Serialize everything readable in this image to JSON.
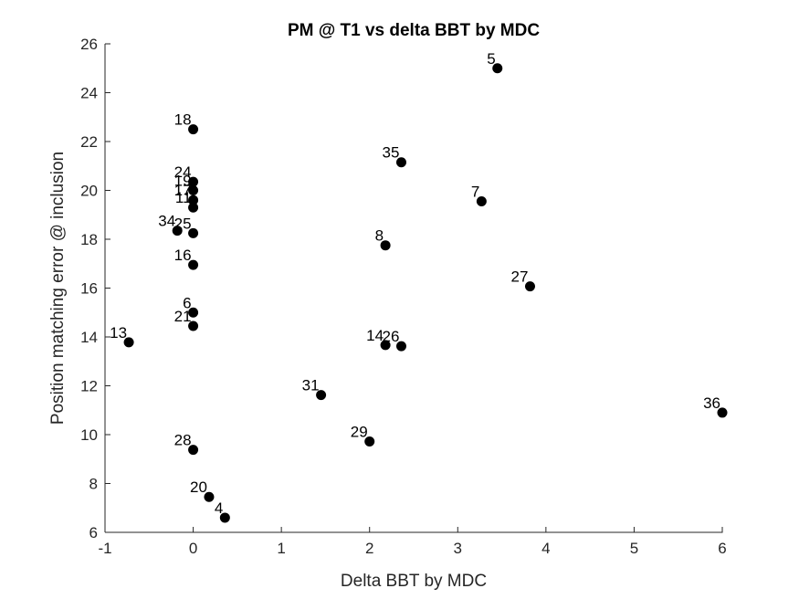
{
  "chart_data": {
    "type": "scatter",
    "title": "PM @ T1 vs delta BBT by MDC",
    "xlabel": "Delta BBT by MDC",
    "ylabel": "Position matching error @ inclusion",
    "xlim": [
      -1,
      6
    ],
    "ylim": [
      6,
      26
    ],
    "xticks": [
      -1,
      0,
      1,
      2,
      3,
      4,
      5,
      6
    ],
    "yticks": [
      6,
      8,
      10,
      12,
      14,
      16,
      18,
      20,
      22,
      24,
      26
    ],
    "grid": false,
    "marker_color": "#000000",
    "points": [
      {
        "label": "5",
        "x": 3.45,
        "y": 25.0
      },
      {
        "label": "18",
        "x": 0.0,
        "y": 22.5
      },
      {
        "label": "35",
        "x": 2.36,
        "y": 21.15
      },
      {
        "label": "24",
        "x": 0.0,
        "y": 20.35
      },
      {
        "label": "19",
        "x": 0.0,
        "y": 20.0
      },
      {
        "label": "17",
        "x": 0.0,
        "y": 19.6
      },
      {
        "label": "11",
        "x": 0.0,
        "y": 19.3
      },
      {
        "label": "7",
        "x": 3.27,
        "y": 19.55
      },
      {
        "label": "34",
        "x": -0.18,
        "y": 18.35
      },
      {
        "label": "25",
        "x": 0.0,
        "y": 18.25
      },
      {
        "label": "8",
        "x": 2.18,
        "y": 17.75
      },
      {
        "label": "16",
        "x": 0.0,
        "y": 16.95
      },
      {
        "label": "27",
        "x": 3.82,
        "y": 16.07
      },
      {
        "label": "6",
        "x": 0.0,
        "y": 15.0
      },
      {
        "label": "21",
        "x": 0.0,
        "y": 14.45
      },
      {
        "label": "13",
        "x": -0.73,
        "y": 13.78
      },
      {
        "label": "14",
        "x": 2.18,
        "y": 13.67
      },
      {
        "label": "26",
        "x": 2.36,
        "y": 13.62
      },
      {
        "label": "31",
        "x": 1.45,
        "y": 11.62
      },
      {
        "label": "36",
        "x": 6.0,
        "y": 10.9
      },
      {
        "label": "29",
        "x": 2.0,
        "y": 9.72
      },
      {
        "label": "28",
        "x": 0.0,
        "y": 9.38
      },
      {
        "label": "20",
        "x": 0.18,
        "y": 7.45
      },
      {
        "label": "4",
        "x": 0.36,
        "y": 6.6
      }
    ]
  }
}
